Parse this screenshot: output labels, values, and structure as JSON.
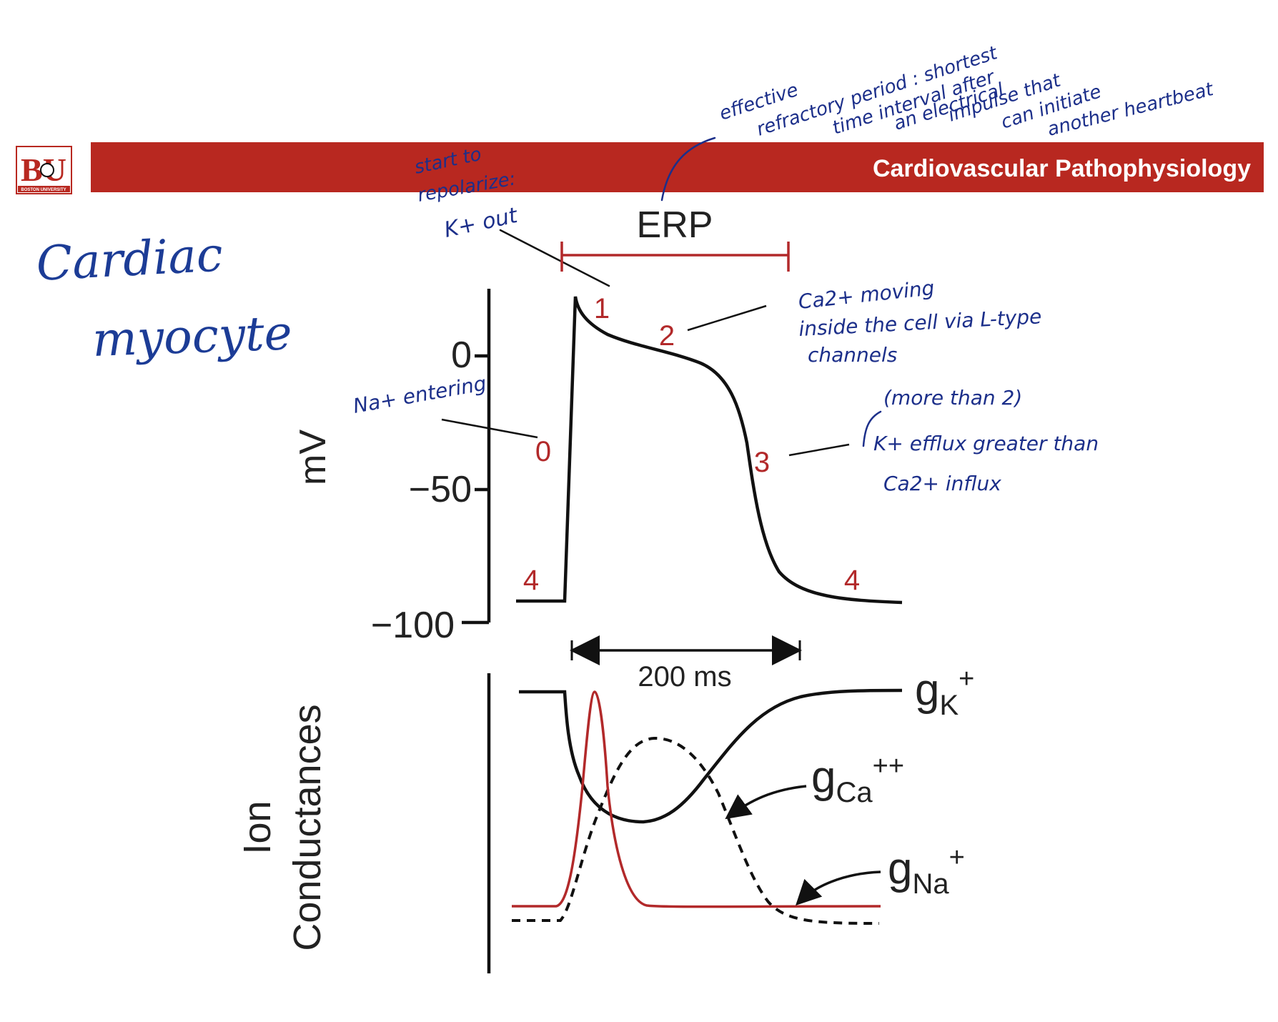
{
  "header": {
    "title": "Cardiovascular Pathophysiology",
    "logo_letters": "BU",
    "logo_caption": "BOSTON UNIVERSITY",
    "bar_color": "#b82820"
  },
  "handwritten": {
    "title_line1": "Cardiac",
    "title_line2": "myocyte",
    "erp_note": {
      "l1": "effective",
      "l2": "refractory period : shortest",
      "l3": "time interval after",
      "l4": "an electrical",
      "l5": "impulse that",
      "l6": "can initiate",
      "l7": "another heartbeat"
    },
    "phase1_note": {
      "l1": "start to",
      "l2": "repolarize:",
      "l3": "K+ out"
    },
    "phase2_note": {
      "l1": "Ca2+ moving",
      "l2": "inside the cell via L-type",
      "l3": "channels"
    },
    "phase0_note": "Na+ entering",
    "phase3_note": {
      "l1": "(more than 2)",
      "l2": "K+ efflux greater than",
      "l3": "Ca2+ influx"
    }
  },
  "diagram": {
    "erp_label": "ERP",
    "y_axis_label": "mV",
    "y_ticks": [
      "0",
      "−50",
      "−100"
    ],
    "phases": {
      "p0": "0",
      "p1": "1",
      "p2": "2",
      "p3": "3",
      "p4a": "4",
      "p4b": "4"
    },
    "duration_label": "200 ms",
    "lower_axis_label_line1": "Ion",
    "lower_axis_label_line2": "Conductances",
    "gk": {
      "base": "g",
      "sub": "K",
      "sup": "+"
    },
    "gca": {
      "base": "g",
      "sub": "Ca",
      "sup": "++"
    },
    "gna": {
      "base": "g",
      "sub": "Na",
      "sup": "+"
    },
    "accent_color": "#b2292a"
  }
}
